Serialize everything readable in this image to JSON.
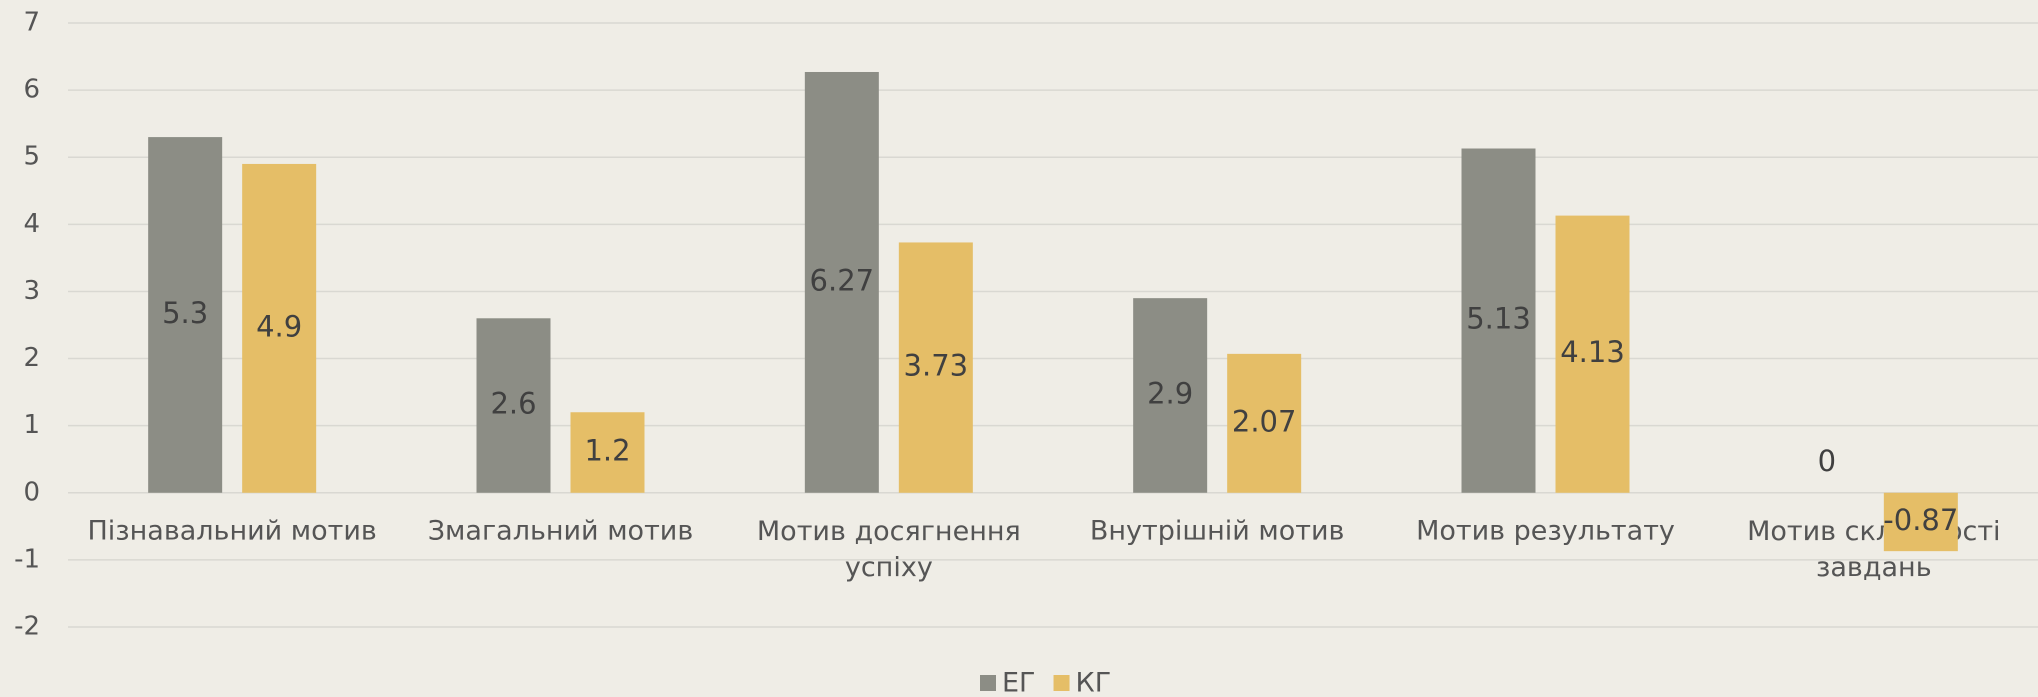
{
  "chart_data": {
    "type": "bar",
    "categories": [
      "Пізнавальний мотив",
      "Змагальний мотив",
      "Мотив досягнення успіху",
      "Внутрішній мотив",
      "Мотив результату",
      "Мотив складності завдань"
    ],
    "series": [
      {
        "name": "ЕГ",
        "color": "#8c8d85",
        "values": [
          5.3,
          2.6,
          6.27,
          2.9,
          5.13,
          0
        ]
      },
      {
        "name": "КГ",
        "color": "#e5be67",
        "values": [
          4.9,
          1.2,
          3.73,
          2.07,
          4.13,
          -0.87
        ]
      }
    ],
    "ylim": [
      -2,
      7
    ],
    "yticks": [
      -2,
      -1,
      0,
      1,
      2,
      3,
      4,
      5,
      6,
      7
    ],
    "grid": true,
    "legend": "bottom"
  }
}
